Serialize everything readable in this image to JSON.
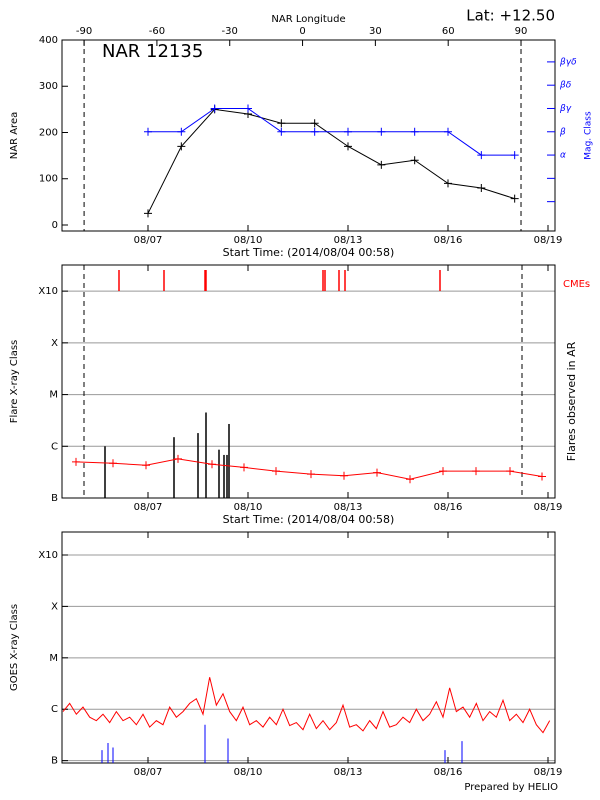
{
  "chart_data": [
    {
      "type": "line",
      "title": "NAR 12135",
      "note": "Lat: +12.50",
      "x_label": "Start Time: (2014/08/04 00:58)",
      "y_label": "NAR Area",
      "y2_label": "Mag. Class",
      "x2_label": "NAR Longitude",
      "x": [
        7,
        8,
        9,
        10,
        11,
        12,
        13,
        14,
        15,
        16,
        17,
        18
      ],
      "series": [
        {
          "color": "#000000",
          "values": [
            25,
            170,
            250,
            240,
            220,
            220,
            170,
            130,
            140,
            90,
            80,
            57
          ]
        },
        {
          "color": "#0000ff",
          "axis": "y2",
          "values": [
            4,
            4,
            5,
            5,
            4,
            4,
            4,
            4,
            4,
            4,
            3,
            3
          ]
        }
      ],
      "xlim": [
        4.42,
        19.21
      ],
      "xticks": [
        {
          "value": 7,
          "label": "08/07"
        },
        {
          "value": 10,
          "label": "08/10"
        },
        {
          "value": 13,
          "label": "08/13"
        },
        {
          "value": 16,
          "label": "08/16"
        },
        {
          "value": 19,
          "label": "08/19"
        }
      ],
      "ylim": [
        -13,
        400
      ],
      "yticks": [
        0,
        100,
        200,
        300,
        400
      ],
      "y2lim": [
        -0.26,
        7.94
      ],
      "y2ticks": [
        {
          "value": 1,
          "label": null
        },
        {
          "value": 2,
          "label": null
        },
        {
          "value": 3,
          "label": "α"
        },
        {
          "value": 4,
          "label": "β"
        },
        {
          "value": 5,
          "label": "βγ"
        },
        {
          "value": 6,
          "label": "βδ"
        },
        {
          "value": 7,
          "label": "βγδ"
        }
      ],
      "x2lim": [
        -99.1,
        104
      ],
      "x2ticks": [
        -90,
        -60,
        -30,
        0,
        30,
        60,
        90
      ],
      "limb_lines": [
        -90,
        90
      ]
    },
    {
      "type": "flare",
      "x_label": "Start Time: (2014/08/04 00:58)",
      "y_label": "Flare X-ray Class",
      "y2_label": "Flares observed in AR",
      "cme_label": "CMEs",
      "log_y": true,
      "grid": true,
      "xlim": [
        4.42,
        19.21
      ],
      "xticks": [
        {
          "value": 7,
          "label": "08/07"
        },
        {
          "value": 10,
          "label": "08/10"
        },
        {
          "value": 13,
          "label": "08/13"
        },
        {
          "value": 16,
          "label": "08/16"
        },
        {
          "value": 19,
          "label": "08/19"
        }
      ],
      "ylim": [
        1e-07,
        0.0032
      ],
      "yticks": [
        {
          "value": 1e-07,
          "label": "B"
        },
        {
          "value": 1e-06,
          "label": "C"
        },
        {
          "value": 1e-05,
          "label": "M"
        },
        {
          "value": 0.0001,
          "label": "X"
        },
        {
          "value": 0.001,
          "label": "X10"
        }
      ],
      "background": {
        "color": "#ff0000",
        "x": [
          4.84,
          5.95,
          6.94,
          7.9,
          8.92,
          9.88,
          10.84,
          11.89,
          12.88,
          13.87,
          14.86,
          15.85,
          16.84,
          17.86,
          18.82
        ],
        "values": [
          5e-07,
          4.7e-07,
          4.3e-07,
          5.7e-07,
          4.5e-07,
          3.9e-07,
          3.3e-07,
          2.9e-07,
          2.7e-07,
          3.1e-07,
          2.3e-07,
          3.3e-07,
          3.3e-07,
          3.3e-07,
          2.6e-07
        ]
      },
      "flares": {
        "color": "#000000",
        "x": [
          5.71,
          7.78,
          8.5,
          8.74,
          9.13,
          9.28,
          9.37,
          9.43
        ],
        "values": [
          1e-06,
          1.5e-06,
          1.8e-06,
          4.5e-06,
          8.6e-07,
          6.8e-07,
          6.8e-07,
          2.7e-06
        ]
      },
      "cmes": {
        "color": "#ff0000",
        "x": [
          6.13,
          7.48,
          8.71,
          8.74,
          12.25,
          12.31,
          12.73,
          12.91,
          15.76
        ]
      },
      "limb_lines": [
        5.08,
        18.22
      ]
    },
    {
      "type": "goes",
      "y_label": "GOES X-ray Class",
      "note": "Prepared by HELIO",
      "log_y": true,
      "grid": true,
      "xlim": [
        4.42,
        19.21
      ],
      "xticks": [
        {
          "value": 7,
          "label": "08/07"
        },
        {
          "value": 10,
          "label": "08/10"
        },
        {
          "value": 13,
          "label": "08/13"
        },
        {
          "value": 16,
          "label": "08/16"
        },
        {
          "value": 19,
          "label": "08/19"
        }
      ],
      "ylim": [
        9e-08,
        0.0028
      ],
      "yticks": [
        {
          "value": 1e-07,
          "label": "B"
        },
        {
          "value": 1e-06,
          "label": "C"
        },
        {
          "value": 1e-05,
          "label": "M"
        },
        {
          "value": 0.0001,
          "label": "X"
        },
        {
          "value": 0.001,
          "label": "X10"
        }
      ],
      "series": [
        {
          "color": "#ff0000",
          "style": "line",
          "x": [
            4.45,
            4.65,
            4.85,
            5.05,
            5.25,
            5.45,
            5.65,
            5.85,
            6.05,
            6.25,
            6.45,
            6.65,
            6.85,
            7.05,
            7.25,
            7.45,
            7.65,
            7.85,
            8.05,
            8.25,
            8.45,
            8.65,
            8.85,
            9.05,
            9.25,
            9.45,
            9.65,
            9.85,
            10.05,
            10.25,
            10.45,
            10.65,
            10.85,
            11.05,
            11.25,
            11.45,
            11.65,
            11.85,
            12.05,
            12.25,
            12.45,
            12.65,
            12.85,
            13.05,
            13.25,
            13.45,
            13.65,
            13.85,
            14.05,
            14.25,
            14.45,
            14.65,
            14.85,
            15.05,
            15.25,
            15.45,
            15.65,
            15.85,
            16.05,
            16.25,
            16.45,
            16.65,
            16.85,
            17.05,
            17.25,
            17.45,
            17.65,
            17.85,
            18.05,
            18.25,
            18.45,
            18.65,
            18.85,
            19.05
          ],
          "values": [
            9e-07,
            1.3e-06,
            8e-07,
            1.1e-06,
            7e-07,
            6e-07,
            8e-07,
            5.5e-07,
            9e-07,
            6e-07,
            7e-07,
            5e-07,
            8e-07,
            4.5e-07,
            6e-07,
            5e-07,
            1.1e-06,
            7e-07,
            9e-07,
            1.3e-06,
            1.6e-06,
            8e-07,
            4.2e-06,
            1.2e-06,
            2e-06,
            9e-07,
            6e-07,
            1.1e-06,
            5e-07,
            6e-07,
            4.5e-07,
            7e-07,
            5e-07,
            1e-06,
            4.8e-07,
            5.5e-07,
            4e-07,
            8e-07,
            4.2e-07,
            6e-07,
            4e-07,
            5.5e-07,
            1.2e-06,
            4.5e-07,
            5e-07,
            3.8e-07,
            6e-07,
            4.2e-07,
            9e-07,
            4.5e-07,
            5e-07,
            7e-07,
            5.5e-07,
            1e-06,
            6e-07,
            8e-07,
            1.4e-06,
            7e-07,
            2.6e-06,
            9e-07,
            1.1e-06,
            7e-07,
            1.3e-06,
            6e-07,
            9e-07,
            7e-07,
            1.5e-06,
            6e-07,
            8e-07,
            5.5e-07,
            1e-06,
            5e-07,
            3.5e-07,
            6e-07
          ]
        },
        {
          "color": "#0000ff",
          "style": "stem",
          "x": [
            5.62,
            5.8,
            5.95,
            8.71,
            9.4,
            15.91,
            16.42
          ],
          "values": [
            1.6e-07,
            2.2e-07,
            1.8e-07,
            5e-07,
            2.7e-07,
            1.6e-07,
            2.4e-07
          ]
        }
      ]
    }
  ]
}
